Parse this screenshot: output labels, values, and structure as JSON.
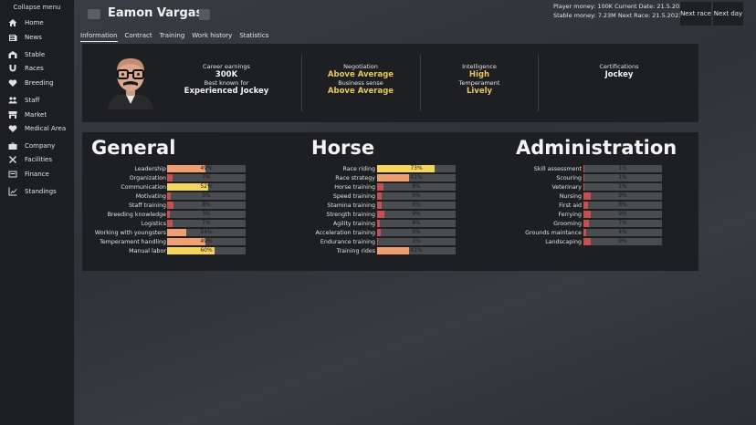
{
  "sidebar": {
    "collapse": "Collapse menu",
    "items": [
      {
        "label": "Home",
        "icon": "home-icon"
      },
      {
        "label": "News",
        "icon": "news-icon"
      },
      {
        "label": "Stable",
        "icon": "stable-icon"
      },
      {
        "label": "Races",
        "icon": "horseshoe-icon"
      },
      {
        "label": "Breeding",
        "icon": "heart-icon"
      },
      {
        "label": "Staff",
        "icon": "people-icon"
      },
      {
        "label": "Market",
        "icon": "market-icon"
      },
      {
        "label": "Medical Area",
        "icon": "medical-icon"
      },
      {
        "label": "Company",
        "icon": "briefcase-icon"
      },
      {
        "label": "Facilities",
        "icon": "tools-icon"
      },
      {
        "label": "Finance",
        "icon": "finance-icon"
      },
      {
        "label": "Standings",
        "icon": "chart-icon"
      }
    ]
  },
  "header": {
    "name": "Eamon Vargas",
    "tabs": [
      "Information",
      "Contract",
      "Training",
      "Work history",
      "Statistics"
    ],
    "active_tab": "Information",
    "status_line1": "Player money: 100K  Current Date: 21.5.2023",
    "status_line2": "Stable money: 7.23M  Next Race: 21.5.2023",
    "next_race": "Next race",
    "next_day": "Next day"
  },
  "info": {
    "career_label": "Career earnings",
    "career_value": "300K",
    "known_label": "Best known for",
    "known_value": "Experienced Jockey",
    "negotiation_label": "Negotiation",
    "negotiation_value": "Above Average",
    "business_label": "Business sense",
    "business_value": "Above Average",
    "intelligence_label": "Intelligence",
    "intelligence_value": "High",
    "temperament_label": "Temperament",
    "temperament_value": "Lively",
    "cert_label": "Certifications",
    "cert_value": "Jockey"
  },
  "sections": [
    {
      "title": "General",
      "skills": [
        {
          "label": "Leadership",
          "value": "49%",
          "level": 0.49
        },
        {
          "label": "Organization",
          "value": "7%",
          "level": 0.07
        },
        {
          "label": "Communication",
          "value": "52%",
          "level": 0.52
        },
        {
          "label": "Motivating",
          "value": "5%",
          "level": 0.05
        },
        {
          "label": "Staff training",
          "value": "8%",
          "level": 0.08
        },
        {
          "label": "Breeding knowledge",
          "value": "3%",
          "level": 0.03
        },
        {
          "label": "Logistics",
          "value": "7%",
          "level": 0.07
        },
        {
          "label": "Working with youngsters",
          "value": "24%",
          "level": 0.24
        },
        {
          "label": "Temperament handling",
          "value": "49%",
          "level": 0.49
        },
        {
          "label": "Manual labor",
          "value": "60%",
          "level": 0.6
        }
      ]
    },
    {
      "title": "Horse",
      "skills": [
        {
          "label": "Race riding",
          "value": "73%",
          "level": 0.73
        },
        {
          "label": "Race strategy",
          "value": "41%",
          "level": 0.41
        },
        {
          "label": "Horse training",
          "value": "8%",
          "level": 0.08
        },
        {
          "label": "Speed training",
          "value": "6%",
          "level": 0.06
        },
        {
          "label": "Stamina training",
          "value": "6%",
          "level": 0.06
        },
        {
          "label": "Strength training",
          "value": "9%",
          "level": 0.09
        },
        {
          "label": "Agility training",
          "value": "4%",
          "level": 0.04
        },
        {
          "label": "Acceleration training",
          "value": "5%",
          "level": 0.05
        },
        {
          "label": "Endurance training",
          "value": "1%",
          "level": 0.01
        },
        {
          "label": "Training rides",
          "value": "41%",
          "level": 0.41
        }
      ]
    },
    {
      "title": "Administration",
      "skills": [
        {
          "label": "Skill assessment",
          "value": "1%",
          "level": 0.01
        },
        {
          "label": "Scouring",
          "value": "1%",
          "level": 0.01
        },
        {
          "label": "Veterinary",
          "value": "1%",
          "level": 0.01
        },
        {
          "label": "Nursing",
          "value": "9%",
          "level": 0.09
        },
        {
          "label": "First aid",
          "value": "6%",
          "level": 0.06
        },
        {
          "label": "Ferrying",
          "value": "9%",
          "level": 0.09
        },
        {
          "label": "Grooming",
          "value": "7%",
          "level": 0.07
        },
        {
          "label": "Grounds maintance",
          "value": "4%",
          "level": 0.04
        },
        {
          "label": "Landscaping",
          "value": "9%",
          "level": 0.09
        }
      ]
    }
  ],
  "colors": {
    "high": "#f5d55a",
    "mid": "#f0a070",
    "low": "#c65050",
    "track": "#4a4c50",
    "gold": "#e8c85a"
  }
}
